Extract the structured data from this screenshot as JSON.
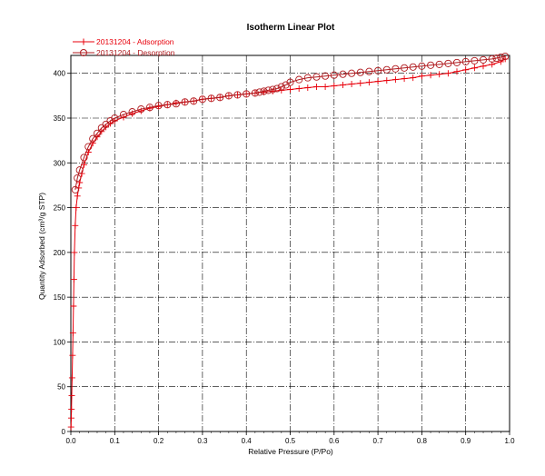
{
  "chart_data": {
    "type": "line",
    "title": "Isotherm Linear Plot",
    "xlabel": "Relative Pressure (P/Po)",
    "ylabel": "Quantity Adsorbed (cm³/g STP)",
    "xlim": [
      0,
      1.0
    ],
    "ylim": [
      0,
      420
    ],
    "x_ticks": [
      "0.0",
      "0.1",
      "0.2",
      "0.3",
      "0.4",
      "0.5",
      "0.6",
      "0.7",
      "0.8",
      "0.9",
      "1.0"
    ],
    "y_ticks": [
      "0",
      "50",
      "100",
      "150",
      "200",
      "250",
      "300",
      "350",
      "400"
    ],
    "grid": true,
    "grid_style": "dashed",
    "legend_position": "top-left",
    "colors": {
      "adsorption": "#e8000b",
      "desorption": "#b01c20",
      "grid": "#000000"
    },
    "series": [
      {
        "name": "20131204 - Adsorption",
        "marker": "plus",
        "x": [
          0.0005,
          0.001,
          0.0015,
          0.002,
          0.003,
          0.004,
          0.005,
          0.006,
          0.007,
          0.008,
          0.01,
          0.012,
          0.015,
          0.018,
          0.02,
          0.025,
          0.03,
          0.04,
          0.05,
          0.06,
          0.07,
          0.08,
          0.09,
          0.1,
          0.12,
          0.14,
          0.16,
          0.18,
          0.2,
          0.22,
          0.24,
          0.26,
          0.28,
          0.3,
          0.32,
          0.34,
          0.36,
          0.38,
          0.4,
          0.42,
          0.44,
          0.46,
          0.48,
          0.5,
          0.52,
          0.54,
          0.56,
          0.58,
          0.6,
          0.62,
          0.64,
          0.66,
          0.68,
          0.7,
          0.72,
          0.74,
          0.76,
          0.78,
          0.8,
          0.82,
          0.84,
          0.86,
          0.88,
          0.9,
          0.92,
          0.94,
          0.96,
          0.98,
          0.99
        ],
        "y": [
          5,
          15,
          25,
          40,
          60,
          85,
          110,
          140,
          170,
          200,
          230,
          250,
          263,
          272,
          278,
          288,
          298,
          312,
          322,
          329,
          335,
          340,
          344,
          347,
          351,
          355,
          358,
          361,
          363,
          365,
          367,
          368,
          369,
          371,
          372,
          373,
          375,
          376,
          377,
          378,
          379,
          380,
          381,
          382,
          383,
          384,
          385,
          385,
          386,
          387,
          388,
          389,
          390,
          391,
          392,
          393,
          394,
          395,
          397,
          398,
          399,
          400,
          402,
          404,
          406,
          408,
          410,
          413,
          416
        ]
      },
      {
        "name": "20131204 - Desorption",
        "marker": "circle",
        "x": [
          0.99,
          0.98,
          0.97,
          0.96,
          0.94,
          0.92,
          0.9,
          0.88,
          0.86,
          0.84,
          0.82,
          0.8,
          0.78,
          0.76,
          0.74,
          0.72,
          0.7,
          0.68,
          0.66,
          0.64,
          0.62,
          0.6,
          0.58,
          0.56,
          0.54,
          0.52,
          0.5,
          0.49,
          0.48,
          0.47,
          0.46,
          0.45,
          0.44,
          0.43,
          0.42,
          0.4,
          0.38,
          0.36,
          0.34,
          0.32,
          0.3,
          0.28,
          0.26,
          0.24,
          0.22,
          0.2,
          0.18,
          0.16,
          0.14,
          0.12,
          0.1,
          0.09,
          0.08,
          0.07,
          0.06,
          0.05,
          0.04,
          0.03,
          0.02,
          0.015,
          0.01
        ],
        "y": [
          419,
          418,
          417,
          416,
          415,
          414,
          413,
          412,
          411,
          410,
          409,
          408,
          407,
          406,
          405,
          404,
          403,
          402,
          401,
          400,
          399,
          398,
          397,
          396,
          395,
          393,
          390,
          387,
          385,
          383,
          382,
          381,
          380,
          379,
          378,
          377,
          376,
          375,
          373,
          372,
          371,
          369,
          368,
          366,
          365,
          364,
          362,
          360,
          357,
          354,
          350,
          347,
          343,
          339,
          333,
          327,
          318,
          306,
          292,
          283,
          270
        ]
      }
    ]
  }
}
